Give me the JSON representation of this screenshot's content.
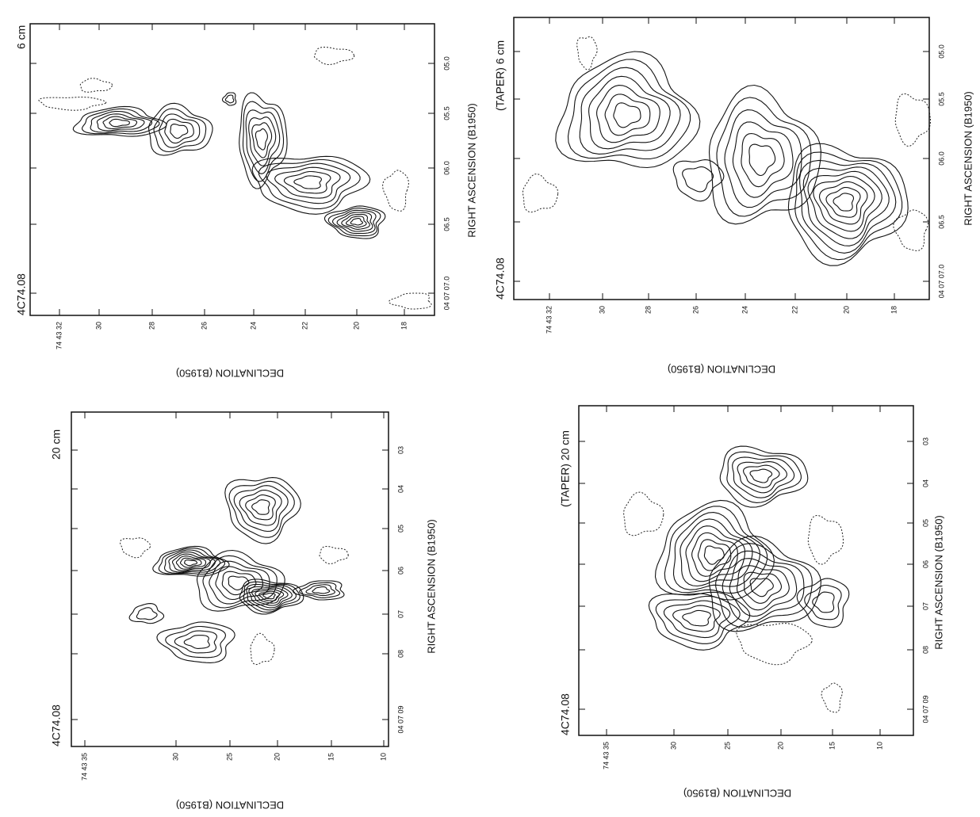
{
  "panels": [
    {
      "title": "6 cm",
      "source": "4C74.08",
      "x_label": "RIGHT ASCENSION (B1950)",
      "y_label": "DECLINATION (B1950)",
      "ra_ticks": [
        "04 07 07.0",
        "06.5",
        "06.0",
        "05.5",
        "05.0"
      ],
      "dec_ticks": [
        "74 43 32",
        "30",
        "28",
        "26",
        "24",
        "22",
        "20",
        "18"
      ]
    },
    {
      "title": "(TAPER) 6 cm",
      "source": "4C74.08",
      "x_label": "RIGHT ASCENSION (B1950)",
      "y_label": "DECLINATION (B1950)",
      "ra_ticks": [
        "04 07 07.0",
        "06.5",
        "06.0",
        "05.5",
        "05.0"
      ],
      "dec_ticks": [
        "74 43 32",
        "30",
        "28",
        "26",
        "24",
        "22",
        "20",
        "18"
      ]
    },
    {
      "title": "20 cm",
      "source": "4C74.08",
      "x_label": "RIGHT ASCENSION (B1950)",
      "y_label": "DECLINATION (B1950)",
      "ra_ticks": [
        "04 07 09",
        "08",
        "07",
        "06",
        "05",
        "04",
        "03"
      ],
      "dec_ticks": [
        "74 43 35",
        "30",
        "25",
        "20",
        "15",
        "10"
      ]
    },
    {
      "title": "(TAPER) 20 cm",
      "source": "4C74.08",
      "x_label": "RIGHT ASCENSION (B1950)",
      "y_label": "DECLINATION (B1950)",
      "ra_ticks": [
        "04 07 09",
        "08",
        "07",
        "06",
        "05",
        "04",
        "03"
      ],
      "dec_ticks": [
        "74 43 35",
        "30",
        "25",
        "20",
        "15",
        "10"
      ]
    }
  ]
}
